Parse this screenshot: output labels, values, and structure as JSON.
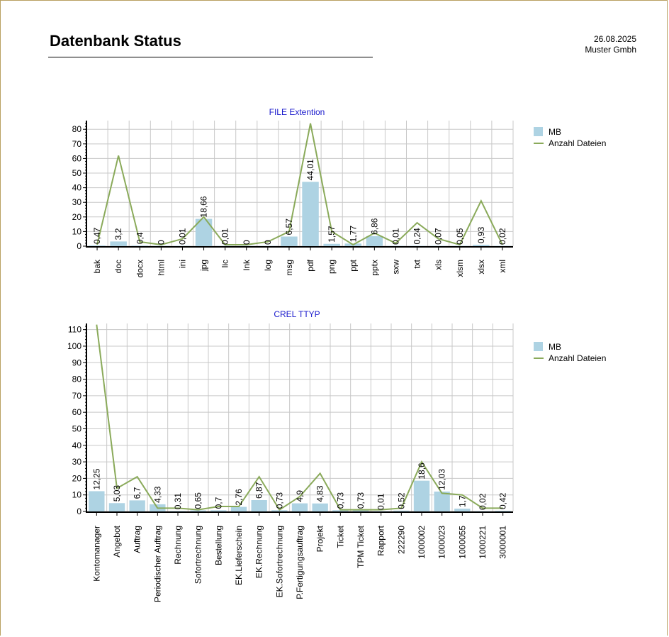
{
  "header": {
    "title": "Datenbank Status",
    "date": "26.08.2025",
    "company": "Muster Gmbh"
  },
  "colors": {
    "bar": "#aed3e3",
    "line": "#8aaa5a",
    "grid": "#c8c8c8",
    "title": "#1a1acc"
  },
  "chart_data": [
    {
      "type": "bar",
      "title": "FILE Extention",
      "categories": [
        "bak",
        "doc",
        "docx",
        "html",
        "ini",
        "jpg",
        "lic",
        "lnk",
        "log",
        "msg",
        "pdf",
        "png",
        "ppt",
        "pptx",
        "sxw",
        "txt",
        "xls",
        "xlsm",
        "xlsx",
        "xml"
      ],
      "series": [
        {
          "name": "MB",
          "type": "bar",
          "values": [
            0.47,
            3.2,
            0.4,
            0,
            0.01,
            18.66,
            0.01,
            0,
            0,
            6.57,
            44.01,
            1.57,
            1.77,
            6.86,
            0.01,
            0.24,
            0.07,
            0.05,
            0.93,
            0.02
          ],
          "labels": [
            "0,47",
            "3,2",
            "0,4",
            "0",
            "0,01",
            "18,66",
            "0,01",
            "0",
            "0",
            "6,57",
            "44,01",
            "1,57",
            "1,77",
            "6,86",
            "0,01",
            "0,24",
            "0,07",
            "0,05",
            "0,93",
            "0,02"
          ]
        },
        {
          "name": "Anzahl Dateien",
          "type": "line",
          "values": [
            1,
            62,
            3,
            1,
            5,
            20,
            1,
            1,
            3,
            10,
            84,
            10,
            1,
            9,
            2,
            16,
            5,
            1,
            31,
            1
          ]
        }
      ],
      "yticks": [
        0,
        10,
        20,
        30,
        40,
        50,
        60,
        70,
        80
      ],
      "ylim": [
        0,
        84
      ],
      "grid": true,
      "legend": "top-right"
    },
    {
      "type": "bar",
      "title": "CREL TTYP",
      "categories": [
        "Kontomanager",
        "Angebot",
        "Auftrag",
        "Periodischer Auftrag",
        "Rechnung",
        "Sofortrechnung",
        "Bestellung",
        "EK.Lieferschein",
        "EK.Rechnung",
        "EK.Sofortrechnung",
        "P.Fertigungsauftrag",
        "Projekt",
        "Ticket",
        "TPM Ticket",
        "Rapport",
        "222290",
        "1000002",
        "1000023",
        "1000055",
        "1000221",
        "3000001"
      ],
      "series": [
        {
          "name": "MB",
          "type": "bar",
          "values": [
            12.25,
            5.03,
            6.7,
            4.33,
            0.31,
            0.65,
            0.7,
            2.76,
            6.87,
            0.73,
            4.9,
            4.83,
            0.73,
            0.73,
            0.01,
            0.52,
            18.6,
            12.03,
            1.7,
            0.02,
            0.42
          ],
          "labels": [
            "12,25",
            "5,03",
            "6,7",
            "4,33",
            "0,31",
            "0,65",
            "0,7",
            "2,76",
            "6,87",
            "0,73",
            "4,9",
            "4,83",
            "0,73",
            "0,73",
            "0,01",
            "0,52",
            "18,6",
            "12,03",
            "1,7",
            "0,02",
            "0,42"
          ]
        },
        {
          "name": "Anzahl Dateien",
          "type": "line",
          "values": [
            113,
            14,
            21,
            2,
            2,
            1,
            3,
            3,
            21,
            1,
            9,
            23,
            1,
            1,
            1,
            2,
            30,
            11,
            10,
            2,
            2
          ]
        }
      ],
      "yticks": [
        0,
        10,
        20,
        30,
        40,
        50,
        60,
        70,
        80,
        90,
        100,
        110
      ],
      "ylim": [
        0,
        112
      ],
      "grid": true,
      "legend": "top-right"
    }
  ]
}
